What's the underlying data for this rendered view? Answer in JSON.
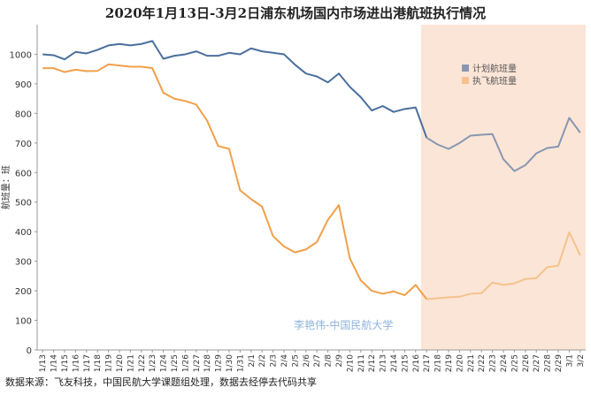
{
  "chart_data": {
    "type": "line",
    "title": "2020年1月13日-3月2日浦东机场国内市场进出港航班执行情况",
    "ylabel": "航班量：班",
    "xlabel": "",
    "ylim": [
      0,
      1100
    ],
    "yticks": [
      0,
      100,
      200,
      300,
      400,
      500,
      600,
      700,
      800,
      900,
      1000
    ],
    "grid": false,
    "legend_position": "right",
    "highlight_start": "2/17",
    "categories": [
      "1/13",
      "1/14",
      "1/15",
      "1/16",
      "1/17",
      "1/18",
      "1/19",
      "1/20",
      "1/21",
      "1/22",
      "1/23",
      "1/24",
      "1/25",
      "1/26",
      "1/27",
      "1/28",
      "1/29",
      "1/30",
      "1/31",
      "2/1",
      "2/2",
      "2/3",
      "2/4",
      "2/5",
      "2/6",
      "2/7",
      "2/8",
      "2/9",
      "2/10",
      "2/11",
      "2/12",
      "2/13",
      "2/14",
      "2/15",
      "2/16",
      "2/17",
      "2/18",
      "2/19",
      "2/20",
      "2/21",
      "2/22",
      "2/23",
      "2/24",
      "2/25",
      "2/26",
      "2/27",
      "2/28",
      "2/29",
      "3/1",
      "3/2"
    ],
    "series": [
      {
        "name": "计划航班量",
        "color": "#4a6f9c",
        "color_highlight": "#8797b2",
        "values": [
          1000,
          997,
          983,
          1008,
          1003,
          1015,
          1030,
          1035,
          1030,
          1035,
          1045,
          985,
          995,
          1000,
          1010,
          995,
          995,
          1005,
          1000,
          1020,
          1010,
          1005,
          1000,
          965,
          935,
          925,
          905,
          935,
          890,
          855,
          810,
          825,
          805,
          815,
          820,
          718,
          695,
          680,
          700,
          725,
          728,
          730,
          645,
          605,
          625,
          665,
          683,
          688,
          785,
          735
        ]
      },
      {
        "name": "执飞航班量",
        "color": "#f0a04b",
        "color_highlight": "#f5c28e",
        "values": [
          953,
          953,
          940,
          948,
          943,
          944,
          966,
          962,
          958,
          958,
          953,
          870,
          850,
          842,
          830,
          775,
          690,
          680,
          540,
          510,
          485,
          385,
          350,
          330,
          340,
          365,
          440,
          490,
          310,
          235,
          200,
          190,
          198,
          185,
          220,
          172,
          175,
          178,
          180,
          190,
          192,
          228,
          220,
          225,
          240,
          243,
          280,
          285,
          398,
          320
        ]
      }
    ],
    "annotation": "李艳伟-中国民航大学"
  },
  "source_note": "数据来源：飞友科技，中国民航大学课题组处理，数据去经停去代码共享"
}
